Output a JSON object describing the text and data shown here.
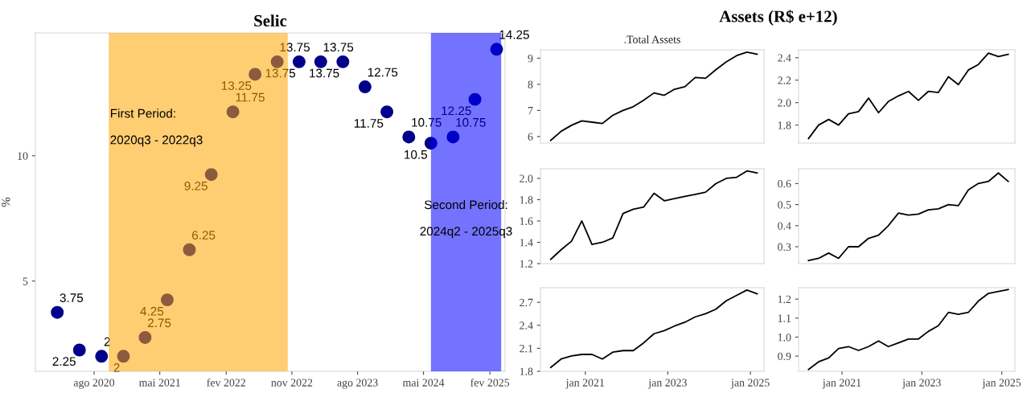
{
  "chart_data": [
    {
      "type": "scatter",
      "title": "Selic",
      "ylabel": "%",
      "x": [
        "2020-03",
        "2020-06",
        "2020-09",
        "2020-12",
        "2021-03",
        "2021-06",
        "2021-09",
        "2021-12",
        "2022-03",
        "2022-06",
        "2022-09",
        "2022-12",
        "2023-03",
        "2023-06",
        "2023-09",
        "2023-12",
        "2024-03",
        "2024-06",
        "2024-09",
        "2024-12",
        "2025-03"
      ],
      "series": [
        {
          "color": "#00008b",
          "values": [
            3.75,
            2.25,
            2,
            2,
            2.75,
            4.25,
            6.25,
            9.25,
            11.75,
            13.25,
            13.75,
            13.75,
            13.75,
            13.75,
            12.75,
            11.75,
            10.75,
            10.5,
            10.75,
            12.25,
            14.25
          ]
        }
      ],
      "data_labels": true,
      "marker": "circle",
      "xlim": [
        "2019-12-01",
        "2025-04-05"
      ],
      "ylim": [
        1.4,
        14.9
      ],
      "yticks": [
        5,
        10
      ],
      "xticks": [
        {
          "value": "2020-08",
          "label": "ago 2020"
        },
        {
          "value": "2021-05",
          "label": "mai 2021"
        },
        {
          "value": "2022-02",
          "label": "fev 2022"
        },
        {
          "value": "2022-11",
          "label": "nov 2022"
        },
        {
          "value": "2023-08",
          "label": "ago 2023"
        },
        {
          "value": "2024-05",
          "label": "mai 2024"
        },
        {
          "value": "2025-02",
          "label": "fev 2025"
        }
      ],
      "bands": [
        {
          "axis": "x",
          "from": "2020-10-01",
          "to": "2022-10-15",
          "label": "First Period:\n\n2020q3 - 2022q3",
          "color": "#ffa500"
        },
        {
          "axis": "x",
          "from": "2024-06-01",
          "to": "2025-03-20",
          "label": "Second Period:\n\n2024q2 - 2025q3",
          "color": "#0000ff"
        }
      ],
      "grid": false
    },
    {
      "type": "line",
      "title": "Assets (R$ e+12)",
      "subtitle": ".Total Assets",
      "x": [
        "2020-03",
        "2020-06",
        "2020-09",
        "2020-12",
        "2021-03",
        "2021-06",
        "2021-09",
        "2021-12",
        "2022-03",
        "2022-06",
        "2022-09",
        "2022-12",
        "2023-03",
        "2023-06",
        "2023-09",
        "2023-12",
        "2024-03",
        "2024-06",
        "2024-09",
        "2024-12",
        "2025-03"
      ],
      "series": [
        {
          "color": "#000000",
          "values": [
            5.85,
            6.2,
            6.43,
            6.6,
            6.55,
            6.5,
            6.81,
            7.0,
            7.14,
            7.39,
            7.67,
            7.58,
            7.81,
            7.91,
            8.26,
            8.23,
            8.56,
            8.86,
            9.1,
            9.23,
            9.15
          ]
        }
      ],
      "xlim": [
        "2019-12-01",
        "2025-05-01"
      ],
      "ylim": [
        5.75,
        9.32
      ],
      "yticks": [
        6,
        7,
        8,
        9
      ],
      "tick_labels": "y",
      "grid": false
    },
    {
      "type": "line",
      "x": [
        "2020-03",
        "2020-06",
        "2020-09",
        "2020-12",
        "2021-03",
        "2021-06",
        "2021-09",
        "2021-12",
        "2022-03",
        "2022-06",
        "2022-09",
        "2022-12",
        "2023-03",
        "2023-06",
        "2023-09",
        "2023-12",
        "2024-03",
        "2024-06",
        "2024-09",
        "2024-12",
        "2025-03"
      ],
      "series": [
        {
          "color": "#000000",
          "values": [
            1.68,
            1.8,
            1.85,
            1.8,
            1.9,
            1.92,
            2.04,
            1.91,
            2.01,
            2.06,
            2.1,
            2.02,
            2.1,
            2.09,
            2.23,
            2.16,
            2.29,
            2.34,
            2.44,
            2.41,
            2.43
          ]
        }
      ],
      "xlim": [
        "2019-12-01",
        "2025-05-01"
      ],
      "ylim": [
        1.64,
        2.47
      ],
      "yticks": [
        {
          "value": 1.8,
          "label": "1.8"
        },
        {
          "value": 2,
          "label": "2.0"
        },
        {
          "value": 2.2,
          "label": "2.2"
        },
        {
          "value": 2.4,
          "label": "2.4"
        }
      ],
      "tick_labels": "y",
      "grid": false
    },
    {
      "type": "line",
      "x": [
        "2020-03",
        "2020-06",
        "2020-09",
        "2020-12",
        "2021-03",
        "2021-06",
        "2021-09",
        "2021-12",
        "2022-03",
        "2022-06",
        "2022-09",
        "2022-12",
        "2023-03",
        "2023-06",
        "2023-09",
        "2023-12",
        "2024-03",
        "2024-06",
        "2024-09",
        "2024-12",
        "2025-03"
      ],
      "series": [
        {
          "color": "#000000",
          "values": [
            1.24,
            1.33,
            1.41,
            1.6,
            1.38,
            1.4,
            1.44,
            1.67,
            1.71,
            1.73,
            1.86,
            1.79,
            1.81,
            1.83,
            1.85,
            1.87,
            1.95,
            2.0,
            2.01,
            2.07,
            2.05
          ]
        }
      ],
      "xlim": [
        "2019-12-01",
        "2025-05-01"
      ],
      "ylim": [
        1.2,
        2.09
      ],
      "yticks": [
        {
          "value": 1.2,
          "label": "1.2"
        },
        {
          "value": 1.4,
          "label": "1.4"
        },
        {
          "value": 1.6,
          "label": "1.6"
        },
        {
          "value": 1.8,
          "label": "1.8"
        },
        {
          "value": 2,
          "label": "2.0"
        }
      ],
      "tick_labels": "y",
      "grid": false
    },
    {
      "type": "line",
      "x": [
        "2020-03",
        "2020-06",
        "2020-09",
        "2020-12",
        "2021-03",
        "2021-06",
        "2021-09",
        "2021-12",
        "2022-03",
        "2022-06",
        "2022-09",
        "2022-12",
        "2023-03",
        "2023-06",
        "2023-09",
        "2023-12",
        "2024-03",
        "2024-06",
        "2024-09",
        "2024-12",
        "2025-03"
      ],
      "series": [
        {
          "color": "#000000",
          "values": [
            0.235,
            0.245,
            0.27,
            0.245,
            0.3,
            0.3,
            0.34,
            0.355,
            0.4,
            0.46,
            0.45,
            0.455,
            0.475,
            0.48,
            0.5,
            0.495,
            0.57,
            0.6,
            0.61,
            0.65,
            0.61
          ]
        }
      ],
      "xlim": [
        "2019-12-01",
        "2025-05-01"
      ],
      "ylim": [
        0.22,
        0.67
      ],
      "yticks": [
        0.3,
        0.4,
        0.5,
        0.6
      ],
      "tick_labels": "y",
      "grid": false
    },
    {
      "type": "line",
      "x": [
        "2020-03",
        "2020-06",
        "2020-09",
        "2020-12",
        "2021-03",
        "2021-06",
        "2021-09",
        "2021-12",
        "2022-03",
        "2022-06",
        "2022-09",
        "2022-12",
        "2023-03",
        "2023-06",
        "2023-09",
        "2023-12",
        "2024-03",
        "2024-06",
        "2024-09",
        "2024-12",
        "2025-03"
      ],
      "series": [
        {
          "color": "#000000",
          "values": [
            1.85,
            1.96,
            2.0,
            2.02,
            2.02,
            1.96,
            2.05,
            2.07,
            2.07,
            2.17,
            2.29,
            2.33,
            2.39,
            2.44,
            2.51,
            2.55,
            2.61,
            2.72,
            2.79,
            2.86,
            2.81
          ]
        }
      ],
      "xlim": [
        "2019-12-01",
        "2025-05-01"
      ],
      "ylim": [
        1.8,
        2.89
      ],
      "yticks": [
        1.8,
        2.1,
        2.4,
        2.7
      ],
      "xticks": [
        {
          "value": "2021-01",
          "label": "jan 2021"
        },
        {
          "value": "2023-01",
          "label": "jan 2023"
        },
        {
          "value": "2025-01",
          "label": "jan 2025"
        }
      ],
      "grid": false
    },
    {
      "type": "line",
      "x": [
        "2020-03",
        "2020-06",
        "2020-09",
        "2020-12",
        "2021-03",
        "2021-06",
        "2021-09",
        "2021-12",
        "2022-03",
        "2022-06",
        "2022-09",
        "2022-12",
        "2023-03",
        "2023-06",
        "2023-09",
        "2023-12",
        "2024-03",
        "2024-06",
        "2024-09",
        "2024-12",
        "2025-03"
      ],
      "series": [
        {
          "color": "#000000",
          "values": [
            0.83,
            0.87,
            0.89,
            0.94,
            0.95,
            0.93,
            0.95,
            0.98,
            0.95,
            0.97,
            0.99,
            0.99,
            1.03,
            1.06,
            1.13,
            1.12,
            1.13,
            1.19,
            1.23,
            1.24,
            1.25
          ]
        }
      ],
      "xlim": [
        "2019-12-01",
        "2025-05-01"
      ],
      "ylim": [
        0.82,
        1.26
      ],
      "yticks": [
        {
          "value": 0.9,
          "label": "0.9"
        },
        {
          "value": 1,
          "label": "1.0"
        },
        {
          "value": 1.1,
          "label": "1.1"
        },
        {
          "value": 1.2,
          "label": "1.2"
        }
      ],
      "xticks": [
        {
          "value": "2021-01",
          "label": "jan 2021"
        },
        {
          "value": "2023-01",
          "label": "jan 2023"
        },
        {
          "value": "2025-01",
          "label": "jan 2025"
        }
      ],
      "grid": false
    }
  ]
}
